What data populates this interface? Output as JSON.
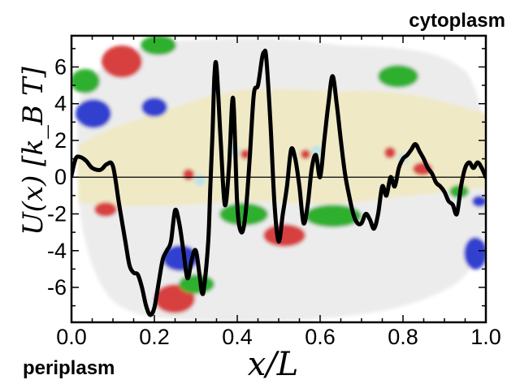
{
  "labels": {
    "top_right": "cytoplasm",
    "bottom_left": "periplasm"
  },
  "chart_data": {
    "type": "line",
    "xlabel": "x/L",
    "ylabel": "U(x)  [k_B T]",
    "xlim": [
      0.0,
      1.0
    ],
    "ylim": [
      -7.9,
      7.7
    ],
    "x_ticks": [
      "0.0",
      "0.2",
      "0.4",
      "0.6",
      "0.8",
      "1.0"
    ],
    "y_ticks": [
      "6",
      "4",
      "2",
      "0",
      "-2",
      "-4",
      "-6"
    ],
    "zero_line": true,
    "background_image": "protein-surface-rendering",
    "colors": {
      "line": "#000000",
      "protein": "#ececec",
      "channel": "#efe9c6",
      "hydrophobic": "#2db02d",
      "positive": "#3340d0",
      "negative": "#d84040"
    },
    "series": [
      {
        "x": [
          0.0,
          0.01,
          0.02,
          0.035,
          0.05,
          0.07,
          0.085,
          0.1,
          0.115,
          0.13,
          0.14,
          0.15,
          0.16,
          0.17,
          0.18,
          0.19,
          0.2,
          0.21,
          0.22,
          0.23,
          0.24,
          0.25,
          0.26,
          0.27,
          0.28,
          0.29,
          0.3,
          0.31,
          0.315,
          0.32,
          0.33,
          0.335,
          0.34,
          0.345,
          0.35,
          0.36,
          0.37,
          0.38,
          0.39,
          0.4,
          0.41,
          0.42,
          0.43,
          0.44,
          0.45,
          0.46,
          0.465,
          0.47,
          0.48,
          0.49,
          0.5,
          0.51,
          0.52,
          0.53,
          0.54,
          0.55,
          0.56,
          0.57,
          0.58,
          0.59,
          0.6,
          0.61,
          0.62,
          0.63,
          0.64,
          0.65,
          0.66,
          0.67,
          0.68,
          0.69,
          0.7,
          0.71,
          0.72,
          0.73,
          0.74,
          0.75,
          0.76,
          0.77,
          0.78,
          0.79,
          0.8,
          0.81,
          0.82,
          0.83,
          0.84,
          0.85,
          0.86,
          0.87,
          0.88,
          0.89,
          0.9,
          0.91,
          0.92,
          0.93,
          0.94,
          0.95,
          0.96,
          0.97,
          0.98,
          0.99,
          1.0
        ],
        "y": [
          0.1,
          1.0,
          1.1,
          0.9,
          0.5,
          0.4,
          0.7,
          0.6,
          -1.5,
          -3.5,
          -4.8,
          -5.2,
          -5.3,
          -6.0,
          -7.0,
          -7.5,
          -7.1,
          -5.8,
          -4.5,
          -4.0,
          -3.5,
          -1.8,
          -2.5,
          -4.0,
          -5.5,
          -4.5,
          -4.0,
          -5.5,
          -6.3,
          -6.0,
          -3.5,
          -0.5,
          2.2,
          5.5,
          6.0,
          2.0,
          -1.5,
          0.5,
          4.3,
          -1.5,
          -3.0,
          -2.0,
          1.0,
          4.5,
          5.0,
          6.5,
          6.8,
          6.5,
          3.0,
          -1.5,
          -3.5,
          -2.0,
          -0.5,
          1.5,
          1.0,
          -0.5,
          -2.5,
          -1.5,
          0.5,
          1.2,
          0.0,
          2.0,
          4.0,
          5.5,
          4.0,
          2.0,
          0.2,
          -1.0,
          -2.0,
          -2.5,
          -2.5,
          -2.0,
          -2.3,
          -2.8,
          -2.0,
          -0.5,
          -1.0,
          0.0,
          -0.5,
          0.5,
          1.0,
          1.2,
          1.5,
          1.8,
          1.4,
          1.0,
          0.5,
          0.2,
          -0.3,
          -0.5,
          -0.8,
          -1.3,
          -1.5,
          -2.0,
          -0.5,
          0.5,
          0.8,
          0.5,
          0.8,
          0.5,
          0.0
        ]
      }
    ]
  }
}
